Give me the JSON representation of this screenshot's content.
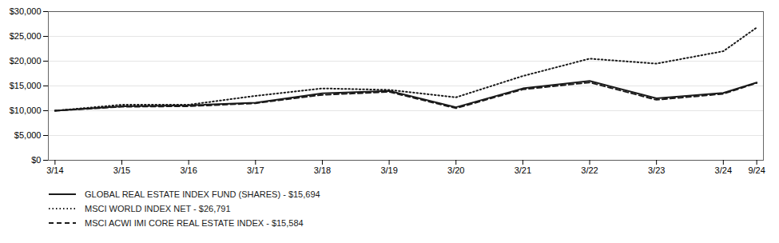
{
  "chart_data": {
    "type": "line",
    "x": [
      0,
      1,
      2,
      3,
      4,
      5,
      6,
      7,
      8,
      9,
      10,
      10.5
    ],
    "xlim": [
      -0.1,
      10.6
    ],
    "xticks": [
      {
        "value": 0,
        "label": "3/14"
      },
      {
        "value": 1,
        "label": "3/15"
      },
      {
        "value": 2,
        "label": "3/16"
      },
      {
        "value": 3,
        "label": "3/17"
      },
      {
        "value": 4,
        "label": "3/18"
      },
      {
        "value": 5,
        "label": "3/19"
      },
      {
        "value": 6,
        "label": "3/20"
      },
      {
        "value": 7,
        "label": "3/21"
      },
      {
        "value": 8,
        "label": "3/22"
      },
      {
        "value": 9,
        "label": "3/23"
      },
      {
        "value": 10,
        "label": "3/24"
      },
      {
        "value": 10.5,
        "label": "9/24"
      }
    ],
    "ylim": [
      0,
      30000
    ],
    "yticks": [
      {
        "value": 0,
        "label": "$0"
      },
      {
        "value": 5000,
        "label": "$5,000"
      },
      {
        "value": 10000,
        "label": "$10,000"
      },
      {
        "value": 15000,
        "label": "$15,000"
      },
      {
        "value": 20000,
        "label": "$20,000"
      },
      {
        "value": 25000,
        "label": "$25,000"
      },
      {
        "value": 30000,
        "label": "$30,000"
      }
    ],
    "grid": true,
    "legend": "bottom",
    "series": [
      {
        "name": "GLOBAL REAL ESTATE INDEX FUND (SHARES) - $15,694",
        "color": "#1a1a1a",
        "line_style": "solid",
        "values": [
          10000,
          10900,
          11100,
          11600,
          13500,
          14000,
          10700,
          14500,
          16000,
          12500,
          13600,
          15694
        ]
      },
      {
        "name": "MSCI WORLD INDEX NET - $26,791",
        "color": "#1a1a1a",
        "line_style": "dotted",
        "values": [
          10000,
          11200,
          11200,
          13000,
          14500,
          14200,
          12700,
          17000,
          20500,
          19500,
          22000,
          26791
        ]
      },
      {
        "name": "MSCI ACWI IMI CORE REAL ESTATE INDEX - $15,584",
        "color": "#1a1a1a",
        "line_style": "dashed",
        "values": [
          10000,
          10800,
          10900,
          11500,
          13200,
          13800,
          10500,
          14300,
          15700,
          12200,
          13400,
          15584
        ]
      }
    ]
  }
}
